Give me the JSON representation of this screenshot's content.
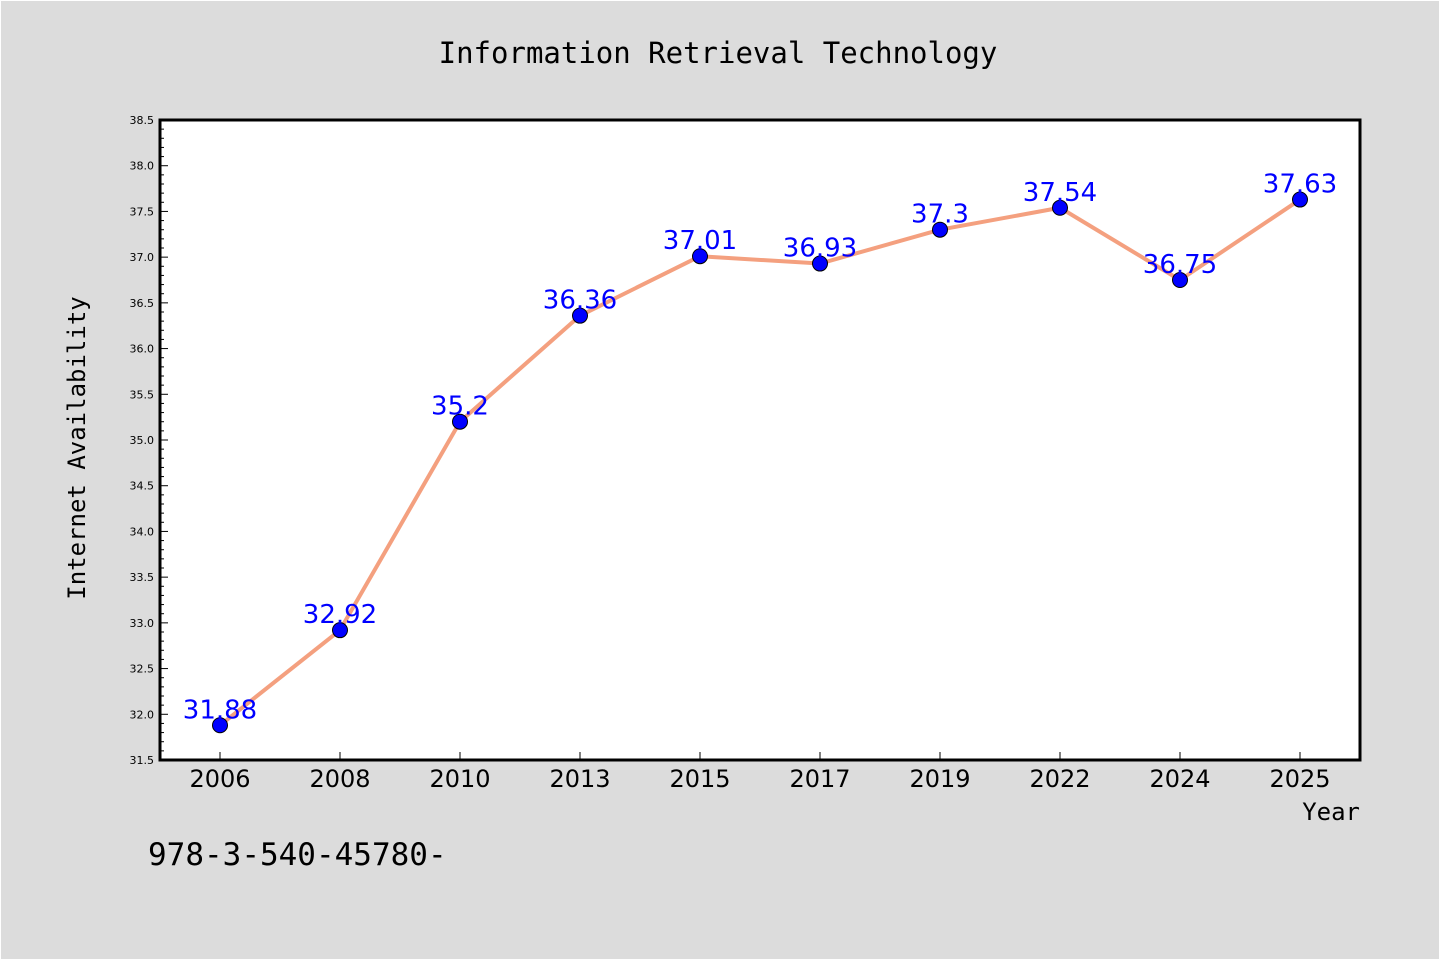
{
  "chart_data": {
    "type": "line",
    "title": "Information Retrieval Technology",
    "xlabel": "Year",
    "ylabel": "Internet Availability",
    "categories": [
      "2006",
      "2008",
      "2010",
      "2013",
      "2015",
      "2017",
      "2019",
      "2022",
      "2024",
      "2025"
    ],
    "series": [
      {
        "values": [
          31.88,
          32.92,
          35.2,
          36.36,
          37.01,
          36.93,
          37.3,
          37.54,
          36.75,
          37.63
        ]
      }
    ],
    "data_labels": [
      "31.88",
      "32.92",
      "35.2",
      "36.36",
      "37.01",
      "36.93",
      "37.3",
      "37.54",
      "36.75",
      "37.63"
    ],
    "ylim": [
      31.5,
      38.5
    ],
    "yticks": [
      "31.5",
      "32.0",
      "32.5",
      "33.0",
      "33.5",
      "34.0",
      "34.5",
      "35.0",
      "35.5",
      "36.0",
      "36.5",
      "37.0",
      "37.5",
      "38.0",
      "38.5"
    ],
    "grid": false,
    "colors": {
      "line": "#f4a07f",
      "marker": "#0000ff",
      "label": "#0000ff",
      "background": "#dcdcdc",
      "plot_background": "#ffffff"
    }
  },
  "footer_text": "978-3-540-45780-"
}
